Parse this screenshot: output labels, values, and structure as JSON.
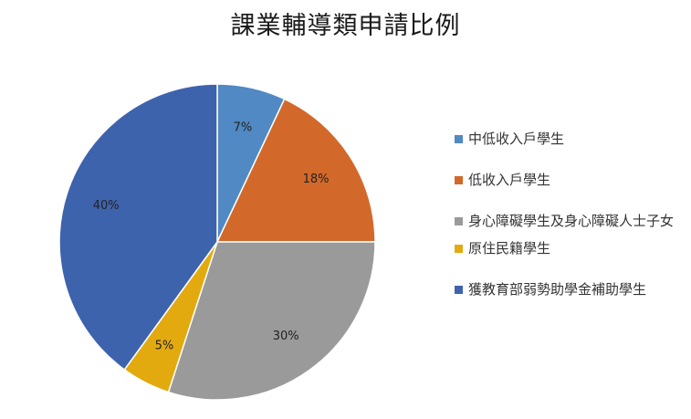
{
  "chart_data": {
    "type": "pie",
    "title": "課業輔導類申請比例",
    "categories": [
      "中低收入戶學生",
      "低收入戶學生",
      "身心障礙學生及身心障礙人士子女",
      "原住民籍學生",
      "獲教育部弱勢助學金補助學生"
    ],
    "values": [
      7,
      18,
      30,
      5,
      40
    ],
    "data_labels": [
      "7%",
      "18%",
      "30%",
      "5%",
      "40%"
    ],
    "colors": [
      "#5089C3",
      "#D2692A",
      "#9A9A9A",
      "#E3AA0F",
      "#3E63AD"
    ],
    "start_angle_deg": 0,
    "direction": "clockwise",
    "legend_position": "right"
  }
}
